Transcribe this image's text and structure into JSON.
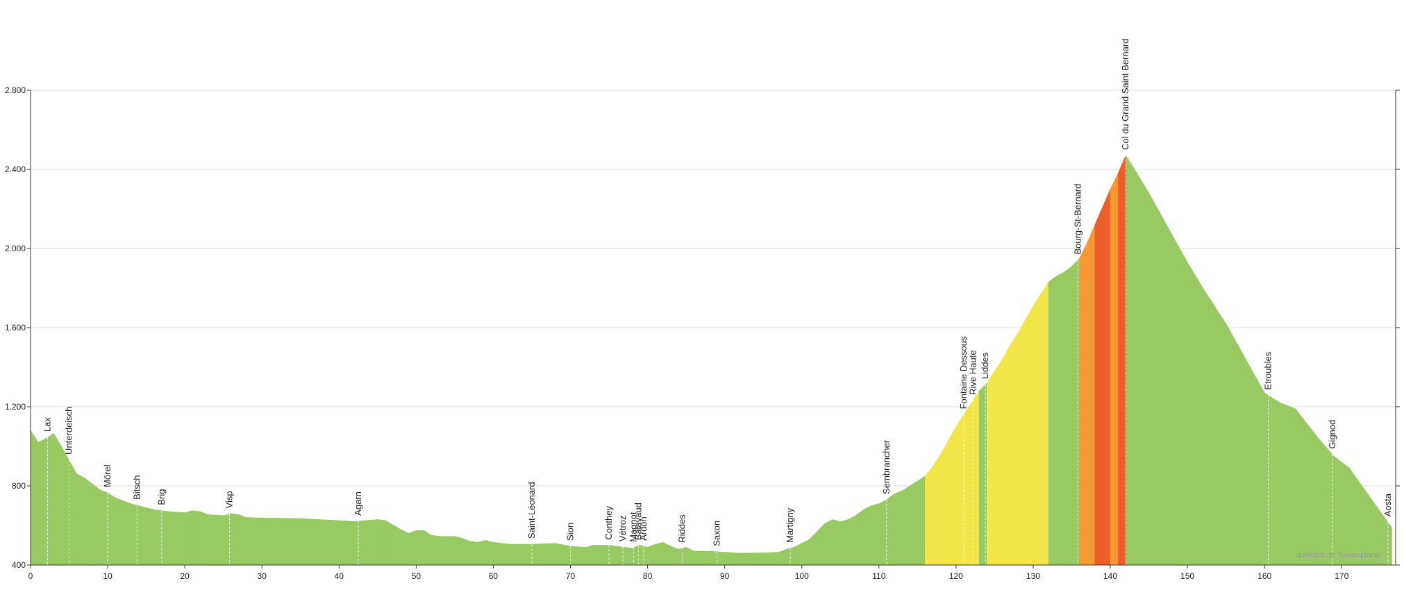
{
  "chart_data": {
    "type": "elevation-profile",
    "x": [
      0,
      1,
      2,
      3,
      4,
      5,
      6,
      7,
      8,
      9,
      10,
      11,
      12,
      13,
      14,
      15,
      16,
      18,
      20,
      21,
      22,
      23,
      25,
      26,
      27,
      28,
      30,
      35,
      40,
      42,
      45,
      46,
      48,
      49,
      50,
      51,
      52,
      53,
      55,
      56,
      57,
      58,
      59,
      60,
      62,
      65,
      68,
      70,
      72,
      73,
      75,
      77,
      78,
      79,
      80,
      81,
      82,
      83,
      84,
      85,
      86,
      88,
      90,
      92,
      95,
      97,
      98,
      99,
      100,
      101,
      102,
      103,
      104,
      105,
      106,
      107,
      108,
      109,
      110,
      111,
      112,
      113,
      114,
      115,
      116,
      117,
      118,
      119,
      120,
      121,
      122,
      123,
      124,
      125,
      126,
      127,
      128,
      129,
      130,
      131,
      132,
      133,
      134,
      135,
      136,
      137,
      138,
      139,
      140,
      141,
      142,
      143,
      145,
      147,
      150,
      152,
      155,
      157,
      160,
      162,
      164,
      165,
      167,
      169,
      171,
      173,
      175,
      176.5
    ],
    "values": [
      1080,
      1020,
      1040,
      1065,
      1000,
      930,
      860,
      840,
      810,
      780,
      765,
      740,
      725,
      710,
      700,
      690,
      680,
      670,
      665,
      675,
      670,
      655,
      650,
      660,
      655,
      640,
      638,
      635,
      625,
      620,
      630,
      625,
      580,
      560,
      575,
      575,
      550,
      545,
      545,
      535,
      520,
      515,
      525,
      515,
      505,
      505,
      510,
      495,
      490,
      500,
      500,
      490,
      485,
      500,
      490,
      505,
      515,
      495,
      480,
      490,
      470,
      470,
      465,
      460,
      462,
      465,
      480,
      490,
      510,
      530,
      570,
      610,
      630,
      620,
      630,
      650,
      680,
      700,
      710,
      730,
      760,
      775,
      800,
      825,
      850,
      900,
      960,
      1030,
      1100,
      1160,
      1220,
      1280,
      1320,
      1380,
      1440,
      1510,
      1570,
      1640,
      1710,
      1770,
      1830,
      1860,
      1880,
      1910,
      1950,
      2030,
      2120,
      2210,
      2300,
      2380,
      2470,
      2410,
      2280,
      2140,
      1930,
      1800,
      1620,
      1480,
      1270,
      1220,
      1190,
      1140,
      1040,
      950,
      890,
      780,
      670,
      590
    ],
    "colors": [
      "#98c963",
      "#98c963",
      "#98c963",
      "#98c963",
      "#98c963",
      "#98c963",
      "#98c963",
      "#98c963",
      "#98c963",
      "#98c963",
      "#98c963",
      "#98c963",
      "#98c963",
      "#98c963",
      "#98c963",
      "#98c963",
      "#98c963",
      "#98c963",
      "#98c963",
      "#98c963",
      "#98c963",
      "#98c963",
      "#98c963",
      "#98c963",
      "#98c963",
      "#98c963",
      "#98c963",
      "#98c963",
      "#98c963",
      "#98c963",
      "#98c963",
      "#98c963",
      "#98c963",
      "#98c963",
      "#98c963",
      "#98c963",
      "#98c963",
      "#98c963",
      "#98c963",
      "#98c963",
      "#98c963",
      "#98c963",
      "#98c963",
      "#98c963",
      "#98c963",
      "#98c963",
      "#98c963",
      "#98c963",
      "#98c963",
      "#98c963",
      "#98c963",
      "#98c963",
      "#98c963",
      "#98c963",
      "#98c963",
      "#98c963",
      "#98c963",
      "#98c963",
      "#98c963",
      "#98c963",
      "#98c963",
      "#98c963",
      "#98c963",
      "#98c963",
      "#98c963",
      "#98c963",
      "#98c963",
      "#98c963",
      "#98c963",
      "#98c963",
      "#98c963",
      "#98c963",
      "#98c963",
      "#98c963",
      "#98c963",
      "#98c963",
      "#98c963",
      "#98c963",
      "#98c963",
      "#98c963",
      "#98c963",
      "#98c963",
      "#98c963",
      "#98c963",
      "#98c963",
      "#f2e64a",
      "#f2e64a",
      "#f2e64a",
      "#f2e64a",
      "#f2e64a",
      "#f2e64a",
      "#f2e64a",
      "#98c963",
      "#f2e64a",
      "#f2e64a",
      "#f2e64a",
      "#f2e64a",
      "#f2e64a",
      "#f2e64a",
      "#f2e64a",
      "#f2e64a",
      "#98c963",
      "#98c963",
      "#98c963",
      "#98c963",
      "#f59a33",
      "#f59a33",
      "#ec5f2a",
      "#ec5f2a",
      "#f59a33",
      "#ec5f2a",
      "#98c963",
      "#98c963",
      "#98c963",
      "#98c963",
      "#98c963",
      "#98c963",
      "#98c963",
      "#98c963",
      "#98c963",
      "#98c963",
      "#98c963",
      "#98c963",
      "#98c963",
      "#98c963",
      "#98c963",
      "#98c963",
      "#98c963"
    ],
    "xlim": [
      0,
      177
    ],
    "xticks": [
      0,
      10,
      20,
      30,
      40,
      50,
      60,
      70,
      80,
      90,
      100,
      110,
      120,
      130,
      140,
      150,
      160,
      170
    ],
    "ylim": [
      400,
      2800
    ],
    "yticks": [
      400,
      800,
      {
        "value": 1200,
        "label": "1.200"
      },
      {
        "value": 1600,
        "label": "1.600"
      },
      {
        "value": 2000,
        "label": "2.000"
      },
      {
        "value": 2400,
        "label": "2.400"
      },
      {
        "value": 2800,
        "label": "2.800"
      }
    ],
    "grid": true,
    "places": [
      {
        "name": "Lax",
        "x": 2.2
      },
      {
        "name": "Unterdeisch",
        "x": 5
      },
      {
        "name": "Mörel",
        "x": 10
      },
      {
        "name": "Bitsch",
        "x": 13.8
      },
      {
        "name": "Brig",
        "x": 17
      },
      {
        "name": "Visp",
        "x": 25.8
      },
      {
        "name": "Agarn",
        "x": 42.5
      },
      {
        "name": "Saint-Léonard",
        "x": 65
      },
      {
        "name": "Sion",
        "x": 70
      },
      {
        "name": "Conthey",
        "x": 75
      },
      {
        "name": "Vétroz",
        "x": 76.8
      },
      {
        "name": "Magnot",
        "x": 78.2
      },
      {
        "name": "Balavaud",
        "x": 78.8
      },
      {
        "name": "Ardon",
        "x": 79.5
      },
      {
        "name": "Riddes",
        "x": 84.5
      },
      {
        "name": "Saxon",
        "x": 89
      },
      {
        "name": "Martigny",
        "x": 98.5
      },
      {
        "name": "Sembrancher",
        "x": 111
      },
      {
        "name": "Fontaine Dessous",
        "x": 121
      },
      {
        "name": "Rive Haute",
        "x": 122.2
      },
      {
        "name": "Liddes",
        "x": 123.8
      },
      {
        "name": "Bourg-St-Bernard",
        "x": 135.8
      },
      {
        "name": "Col du Grand Saint Bernard",
        "x": 142
      },
      {
        "name": "Etroubles",
        "x": 160.5
      },
      {
        "name": "Gignod",
        "x": 168.8
      },
      {
        "name": "Aosta",
        "x": 176
      }
    ],
    "credit": "quäldich.de Tourenplaner"
  }
}
